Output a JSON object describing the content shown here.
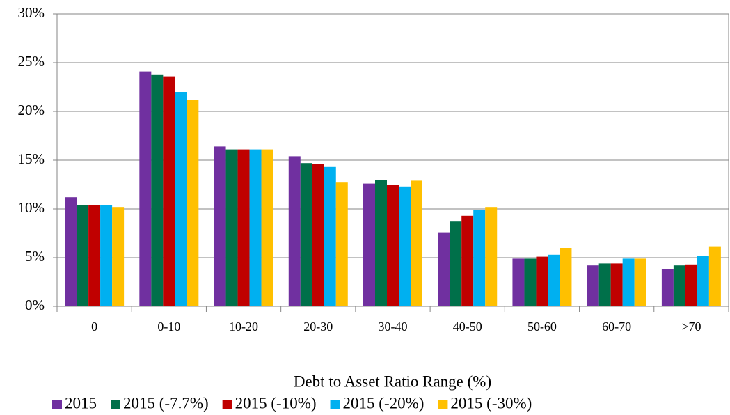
{
  "chart_data": {
    "type": "bar",
    "x_label": "Debt to Asset Ratio Range (%)",
    "categories": [
      "0",
      "0-10",
      "10-20",
      "20-30",
      "30-40",
      "40-50",
      "50-60",
      "60-70",
      ">70"
    ],
    "series": [
      {
        "name": "2015",
        "color": "#7030a0",
        "values": [
          11.2,
          24.1,
          16.4,
          15.4,
          12.6,
          7.6,
          4.9,
          4.2,
          3.8
        ]
      },
      {
        "name": "2015 (-7.7%)",
        "color": "#00704a",
        "values": [
          10.4,
          23.8,
          16.1,
          14.7,
          13.0,
          8.7,
          4.9,
          4.4,
          4.2
        ]
      },
      {
        "name": "2015 (-10%)",
        "color": "#c00000",
        "values": [
          10.4,
          23.6,
          16.1,
          14.6,
          12.5,
          9.3,
          5.1,
          4.4,
          4.3
        ]
      },
      {
        "name": "2015 (-20%)",
        "color": "#00b0f0",
        "values": [
          10.4,
          22.0,
          16.1,
          14.3,
          12.3,
          9.9,
          5.3,
          4.9,
          5.2
        ]
      },
      {
        "name": "2015 (-30%)",
        "color": "#ffc000",
        "values": [
          10.2,
          21.2,
          16.1,
          12.7,
          12.9,
          10.2,
          6.0,
          4.9,
          6.1
        ]
      }
    ],
    "ylim": [
      0,
      30
    ],
    "yticks": [
      {
        "value": 0,
        "label": "0%"
      },
      {
        "value": 5,
        "label": "5%"
      },
      {
        "value": 10,
        "label": "10%"
      },
      {
        "value": 15,
        "label": "15%"
      },
      {
        "value": 20,
        "label": "20%"
      },
      {
        "value": 25,
        "label": "25%"
      },
      {
        "value": 30,
        "label": "30%"
      }
    ],
    "grid": true,
    "legend": "bottom"
  }
}
